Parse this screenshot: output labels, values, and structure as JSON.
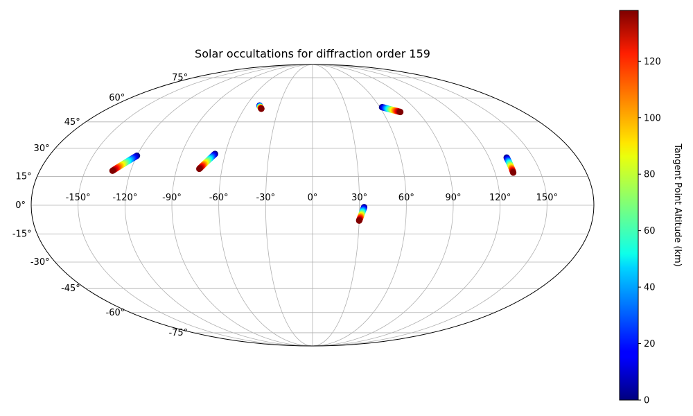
{
  "chart_data": {
    "type": "scatter",
    "projection": "mollweide",
    "title": "Solar occultations for diffraction order 159",
    "grid": true,
    "lon_ticks": [
      -150,
      -120,
      -90,
      -60,
      -30,
      0,
      30,
      60,
      90,
      120,
      150
    ],
    "lon_tick_labels": [
      "-150°",
      "-120°",
      "-90°",
      "-60°",
      "-30°",
      "0°",
      "30°",
      "60°",
      "90°",
      "120°",
      "150°"
    ],
    "lat_ticks": [
      -75,
      -60,
      -45,
      -30,
      -15,
      0,
      15,
      30,
      45,
      60,
      75
    ],
    "lat_tick_labels": [
      "-75°",
      "-60°",
      "-45°",
      "-30°",
      "-15°",
      "0°",
      "15°",
      "30°",
      "45°",
      "60°",
      "75°"
    ],
    "colorbar": {
      "label": "Tangent Point Altitude (km)",
      "colormap": "jet",
      "range": [
        0,
        138
      ],
      "ticks": [
        0,
        20,
        40,
        60,
        80,
        100,
        120
      ],
      "tick_labels": [
        "0",
        "20",
        "40",
        "60",
        "80",
        "100",
        "120"
      ]
    },
    "tracks": [
      {
        "start": {
          "lon": -120,
          "lat": 26,
          "alt": 0
        },
        "end": {
          "lon": -132,
          "lat": 18,
          "alt": 138
        }
      },
      {
        "start": {
          "lon": -67,
          "lat": 27,
          "alt": 0
        },
        "end": {
          "lon": -75,
          "lat": 19,
          "alt": 138
        }
      },
      {
        "start": {
          "lon": -48,
          "lat": 55,
          "alt": 0
        },
        "end": {
          "lon": -45,
          "lat": 53,
          "alt": 138
        }
      },
      {
        "start": {
          "lon": 62,
          "lat": 54,
          "alt": 0
        },
        "end": {
          "lon": 75,
          "lat": 51,
          "alt": 138
        }
      },
      {
        "start": {
          "lon": 132,
          "lat": 25,
          "alt": 0
        },
        "end": {
          "lon": 132,
          "lat": 17,
          "alt": 138
        }
      },
      {
        "start": {
          "lon": 33,
          "lat": -1,
          "alt": 0
        },
        "end": {
          "lon": 30,
          "lat": -8,
          "alt": 138
        }
      }
    ]
  }
}
